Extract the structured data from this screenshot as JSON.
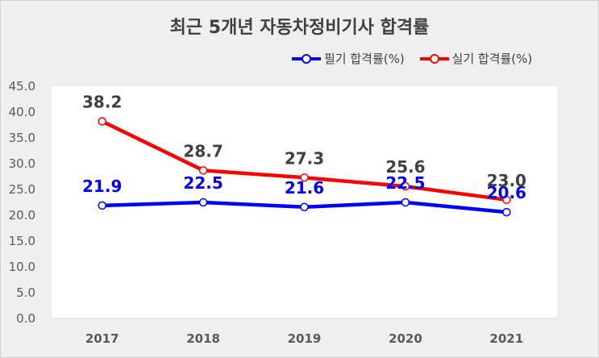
{
  "chart_data": {
    "type": "line",
    "title": "최근 5개년 자동차정비기사 합격률",
    "xlabel": "",
    "ylabel": "",
    "categories": [
      "2017",
      "2018",
      "2019",
      "2020",
      "2021"
    ],
    "ylim": [
      0,
      45
    ],
    "yticks": [
      "0.0",
      "5.0",
      "10.0",
      "15.0",
      "20.0",
      "25.0",
      "30.0",
      "35.0",
      "40.0",
      "45.0"
    ],
    "grid": false,
    "legend_position": "top-right",
    "series": [
      {
        "name": "필기 합격률(%)",
        "color": "#0000ff",
        "label_color": "#0000ff",
        "values": [
          21.9,
          22.5,
          21.6,
          22.5,
          20.6
        ],
        "labels": [
          "21.9",
          "22.5",
          "21.6",
          "22.5",
          "20.6"
        ]
      },
      {
        "name": "실기 합격률(%)",
        "color": "#ff0000",
        "label_color": "#404040",
        "values": [
          38.2,
          28.7,
          27.3,
          25.6,
          23.0
        ],
        "labels": [
          "38.2",
          "28.7",
          "27.3",
          "25.6",
          "23.0"
        ]
      }
    ]
  }
}
